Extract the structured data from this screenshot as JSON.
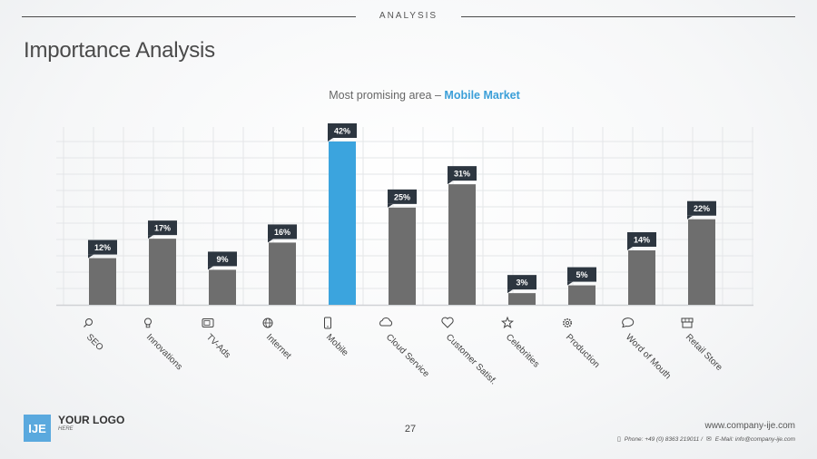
{
  "header": {
    "section": "ANALYSIS",
    "title": "Importance Analysis"
  },
  "subtitle": {
    "prefix": "Most promising area",
    "dash": "–",
    "highlight": "Mobile Market"
  },
  "colors": {
    "bar": "#6e6e6e",
    "highlight": "#3ba4de",
    "label_bg": "#2d3640",
    "grid": "#e4e6e8"
  },
  "chart_data": {
    "type": "bar",
    "title": "",
    "categories": [
      "SEO",
      "Innovations",
      "TV-Ads",
      "Internet",
      "Mobile",
      "Cloud Service",
      "Customer Satisf.",
      "Celebrities",
      "Production",
      "Word of Mouth",
      "Retail Store"
    ],
    "values": [
      12,
      17,
      9,
      16,
      42,
      25,
      31,
      3,
      5,
      14,
      22
    ],
    "labels": [
      "12%",
      "17%",
      "9%",
      "16%",
      "42%",
      "25%",
      "31%",
      "3%",
      "5%",
      "14%",
      "22%"
    ],
    "icons": [
      "search-icon",
      "lightbulb-icon",
      "tv-icon",
      "globe-icon",
      "mobile-icon",
      "cloud-icon",
      "heart-icon",
      "star-icon",
      "gear-icon",
      "chat-icon",
      "store-icon"
    ],
    "highlight_index": 4,
    "ylim": [
      0,
      42
    ],
    "grid": true
  },
  "footer": {
    "logo_mark": "IJE",
    "logo_text": "YOUR LOGO",
    "logo_sub": "HERE",
    "page": "27",
    "website": "www.company-ije.com",
    "phone": "Phone: +49 (0) 8363 219011 /",
    "email": "E-Mail: info@company-ije.com"
  }
}
